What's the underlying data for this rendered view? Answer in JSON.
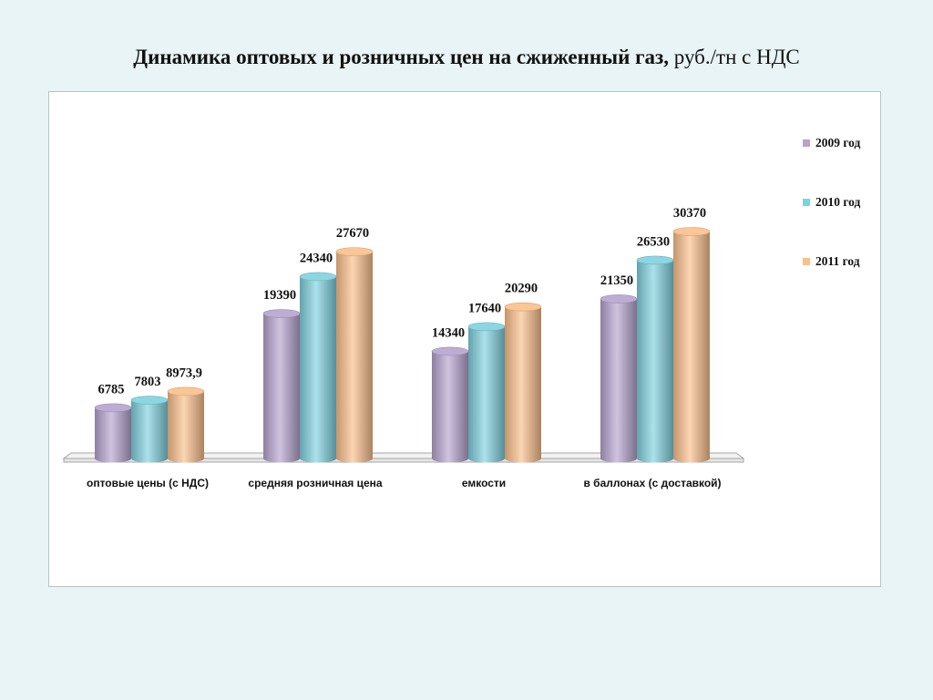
{
  "title": {
    "bold": "Динамика оптовых и розничных цен на сжиженный газ,",
    "regular": " руб./тн с НДС"
  },
  "chart_data": {
    "type": "bar",
    "categories": [
      "оптовые цены (с НДС)",
      "средняя розничная цена",
      "емкости",
      "в баллонах (с доставкой)"
    ],
    "series": [
      {
        "name": "2009 год",
        "values": [
          6785,
          19390,
          14340,
          21350
        ],
        "labels": [
          "6785",
          "19390",
          "14340",
          "21350"
        ],
        "color": "#b6a3cf"
      },
      {
        "name": "2010 год",
        "values": [
          7803,
          24340,
          17640,
          26530
        ],
        "labels": [
          "7803",
          "24340",
          "17640",
          "26530"
        ],
        "color": "#7fd1de"
      },
      {
        "name": "2011 год",
        "values": [
          8973.9,
          27670,
          20290,
          30370
        ],
        "labels": [
          "8973,9",
          "27670",
          "20290",
          "30370"
        ],
        "color": "#fbbf8a"
      }
    ],
    "ylim": [
      0,
      30370
    ],
    "legend": "right",
    "grid": false
  }
}
